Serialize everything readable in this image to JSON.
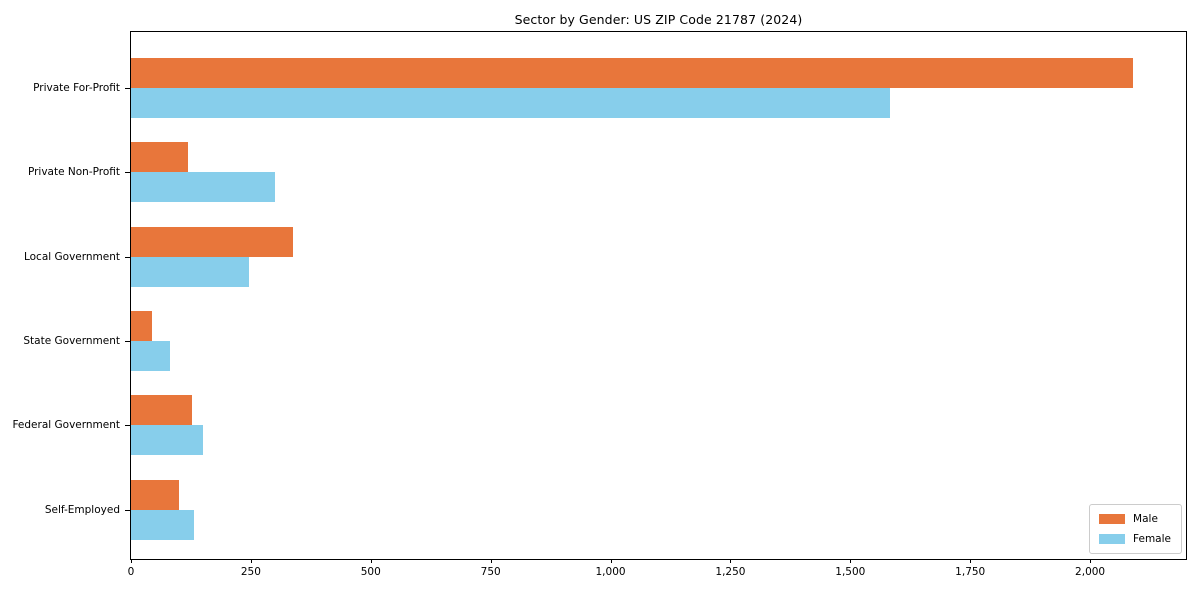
{
  "chart_data": {
    "type": "bar",
    "orientation": "horizontal",
    "title": "Sector by Gender: US ZIP Code 21787 (2024)",
    "categories": [
      "Private For-Profit",
      "Private Non-Profit",
      "Local Government",
      "State Government",
      "Federal Government",
      "Self-Employed"
    ],
    "series": [
      {
        "name": "Male",
        "color": "#e8763b",
        "values": [
          2090,
          119,
          338,
          43,
          127,
          101
        ]
      },
      {
        "name": "Female",
        "color": "#87ceeb",
        "values": [
          1583,
          300,
          247,
          81,
          151,
          131
        ]
      }
    ],
    "xlabel": "",
    "ylabel": "",
    "xlim": [
      0,
      2200
    ],
    "xticks": [
      0,
      250,
      500,
      750,
      1000,
      1250,
      1500,
      1750,
      2000
    ],
    "xtick_labels": [
      "0",
      "250",
      "500",
      "750",
      "1,000",
      "1,250",
      "1,500",
      "1,750",
      "2,000"
    ],
    "grid": false,
    "legend": {
      "position": "lower-right",
      "border_color": "#cccccc"
    },
    "colors": {
      "axis": "#000000",
      "background": "#ffffff"
    }
  }
}
